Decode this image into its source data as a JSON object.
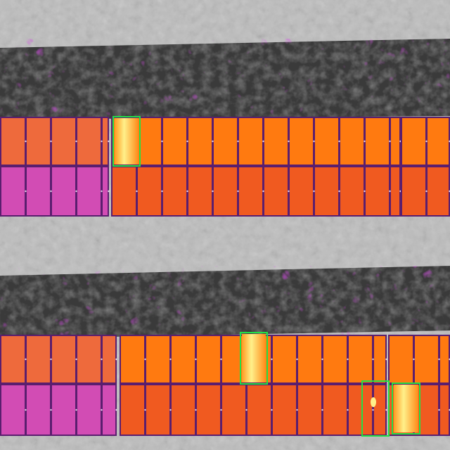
{
  "scene": {
    "type": "thermal-aerial-solar-array",
    "palette": {
      "ground_light": "#c8c8c8",
      "ground_dark": "#9a9a9a",
      "vegetation_dark": "#3a3a3a",
      "vegetation_magenta": "#a814c8",
      "panel_hot_orange": "#ff7a10",
      "panel_orange_dark": "#f05a20",
      "panel_frame_purple": "#5a1e6e",
      "panel_cold_magenta": "#c83cc8",
      "hotspot_yellow": "#fff08a",
      "detection_box": "#22e046"
    }
  },
  "rows": [
    {
      "name": "upper-panel-row",
      "tables": 3
    },
    {
      "name": "lower-panel-row",
      "tables": 3
    }
  ],
  "detections": [
    {
      "label": "hotspot-1",
      "row": "upper",
      "kind": "bright module"
    },
    {
      "label": "hotspot-2",
      "row": "lower",
      "kind": "bright module"
    },
    {
      "label": "hotspot-3",
      "row": "lower",
      "kind": "small hotspot"
    },
    {
      "label": "hotspot-4",
      "row": "lower",
      "kind": "bright module"
    }
  ]
}
